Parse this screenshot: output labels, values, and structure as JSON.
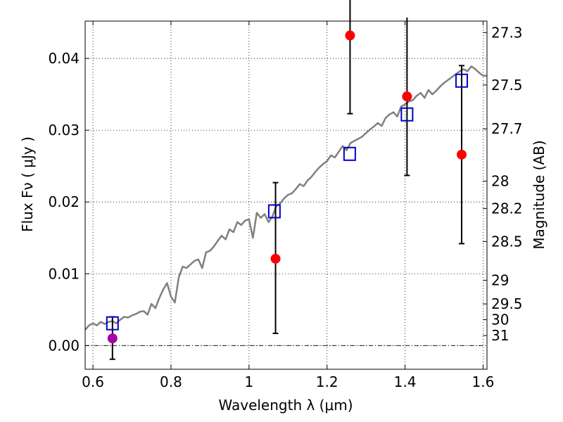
{
  "chart_data": {
    "type": "scatter",
    "xlabel": "Wavelength  λ (μm)",
    "ylabel": "Flux  Fν  ( μJy )",
    "y2label": "Magnitude (AB)",
    "xlim": [
      0.58,
      1.61
    ],
    "ylim": [
      -0.0033,
      0.0452
    ],
    "grid": true,
    "x_ticks": [
      {
        "value": 0.6,
        "label": "0.6"
      },
      {
        "value": 0.8,
        "label": "0.8"
      },
      {
        "value": 1.0,
        "label": "1"
      },
      {
        "value": 1.2,
        "label": "1.2"
      },
      {
        "value": 1.4,
        "label": "1.4"
      },
      {
        "value": 1.6,
        "label": "1.6"
      }
    ],
    "y_ticks": [
      {
        "value": 0.0,
        "label": "0.00"
      },
      {
        "value": 0.01,
        "label": "0.01"
      },
      {
        "value": 0.02,
        "label": "0.02"
      },
      {
        "value": 0.03,
        "label": "0.03"
      },
      {
        "value": 0.04,
        "label": "0.04"
      }
    ],
    "magnitude_ticks": [
      {
        "flux": 0.0436,
        "label": "27.3"
      },
      {
        "flux": 0.0363,
        "label": "27.5"
      },
      {
        "flux": 0.0302,
        "label": "27.7"
      },
      {
        "flux": 0.0229,
        "label": "28"
      },
      {
        "flux": 0.0191,
        "label": "28.2"
      },
      {
        "flux": 0.0145,
        "label": "28.5"
      },
      {
        "flux": 0.0091,
        "label": "29"
      },
      {
        "flux": 0.0058,
        "label": "29.5"
      },
      {
        "flux": 0.0036,
        "label": "30"
      },
      {
        "flux": 0.0014,
        "label": "31"
      }
    ],
    "series": [
      {
        "kind": "line",
        "color": "#808080",
        "x": [
          0.58,
          0.59,
          0.6,
          0.61,
          0.62,
          0.63,
          0.64,
          0.65,
          0.66,
          0.67,
          0.68,
          0.69,
          0.7,
          0.71,
          0.72,
          0.73,
          0.74,
          0.75,
          0.76,
          0.77,
          0.78,
          0.79,
          0.8,
          0.81,
          0.82,
          0.83,
          0.84,
          0.85,
          0.86,
          0.87,
          0.88,
          0.89,
          0.9,
          0.91,
          0.92,
          0.93,
          0.94,
          0.95,
          0.96,
          0.97,
          0.98,
          0.99,
          1.0,
          1.01,
          1.02,
          1.03,
          1.04,
          1.05,
          1.06,
          1.07,
          1.08,
          1.09,
          1.1,
          1.11,
          1.12,
          1.13,
          1.14,
          1.15,
          1.16,
          1.17,
          1.18,
          1.19,
          1.2,
          1.21,
          1.22,
          1.23,
          1.24,
          1.25,
          1.26,
          1.27,
          1.28,
          1.29,
          1.3,
          1.31,
          1.32,
          1.33,
          1.34,
          1.35,
          1.36,
          1.37,
          1.38,
          1.39,
          1.4,
          1.41,
          1.42,
          1.43,
          1.44,
          1.45,
          1.46,
          1.47,
          1.48,
          1.49,
          1.5,
          1.51,
          1.52,
          1.53,
          1.54,
          1.55,
          1.56,
          1.57,
          1.58,
          1.59,
          1.6,
          1.61
        ],
        "y": [
          0.0022,
          0.0028,
          0.0031,
          0.0028,
          0.0033,
          0.003,
          0.0033,
          0.0034,
          0.0031,
          0.0036,
          0.004,
          0.0039,
          0.0042,
          0.0044,
          0.0047,
          0.0048,
          0.0043,
          0.0058,
          0.0052,
          0.0066,
          0.0078,
          0.0087,
          0.0068,
          0.006,
          0.0095,
          0.011,
          0.0108,
          0.0113,
          0.0118,
          0.012,
          0.0108,
          0.013,
          0.0132,
          0.0138,
          0.0146,
          0.0153,
          0.0148,
          0.0162,
          0.0158,
          0.0172,
          0.0168,
          0.0174,
          0.0176,
          0.015,
          0.0185,
          0.0178,
          0.0183,
          0.0172,
          0.018,
          0.0194,
          0.0198,
          0.0205,
          0.021,
          0.0212,
          0.0218,
          0.0225,
          0.0222,
          0.023,
          0.0235,
          0.0242,
          0.0248,
          0.0253,
          0.0257,
          0.0265,
          0.0262,
          0.027,
          0.0278,
          0.0272,
          0.0282,
          0.0285,
          0.0288,
          0.0291,
          0.0296,
          0.0301,
          0.0305,
          0.031,
          0.0306,
          0.0317,
          0.0322,
          0.0325,
          0.0319,
          0.0333,
          0.0336,
          0.034,
          0.0342,
          0.0348,
          0.0352,
          0.0345,
          0.0356,
          0.035,
          0.0355,
          0.0361,
          0.0366,
          0.037,
          0.0374,
          0.0378,
          0.0382,
          0.0385,
          0.0382,
          0.0389,
          0.0385,
          0.038,
          0.0376,
          0.0376
        ]
      },
      {
        "kind": "open-squares",
        "color": "#0000cc",
        "x": [
          0.65,
          1.065,
          1.258,
          1.405,
          1.545
        ],
        "y": [
          0.0031,
          0.0187,
          0.0267,
          0.0322,
          0.0369
        ]
      },
      {
        "kind": "filled-circles",
        "color": "#ff0000",
        "x": [
          1.068,
          1.259,
          1.405,
          1.545
        ],
        "y": [
          0.0121,
          0.0432,
          0.0347,
          0.0266
        ],
        "err_low": [
          0.0104,
          0.0109,
          0.011,
          0.0124
        ],
        "err_high": [
          0.0106,
          0.02,
          0.011,
          0.0124
        ]
      },
      {
        "kind": "filled-circles",
        "color": "#aa00aa",
        "x": [
          0.65
        ],
        "y": [
          0.001
        ],
        "err_low": [
          0.0029
        ],
        "err_high": [
          0.003
        ]
      }
    ]
  }
}
